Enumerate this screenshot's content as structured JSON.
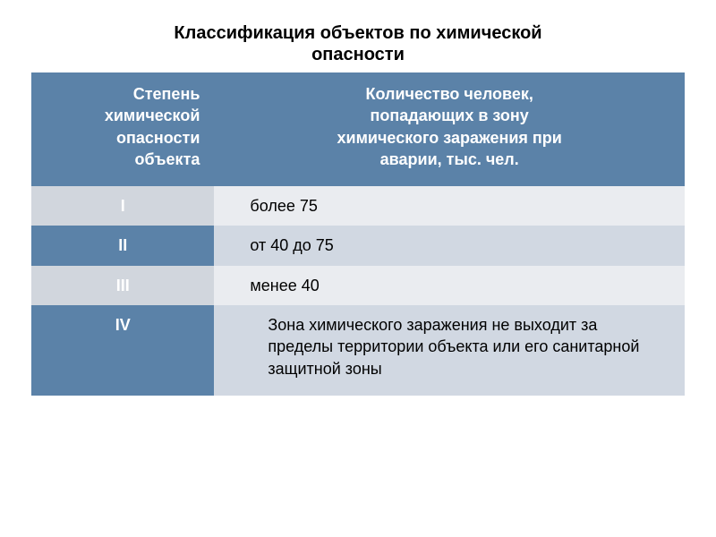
{
  "title_line1": "Классификация объектов по химической",
  "title_line2": "опасности",
  "header": {
    "col1_l1": "Степень",
    "col1_l2": "химической",
    "col1_l3": "опасности",
    "col1_l4": "объекта",
    "col2_l1": "Количество человек,",
    "col2_l2": "попадающих в зону",
    "col2_l3": "химического заражения при",
    "col2_l4": "аварии, тыс. чел."
  },
  "rows": [
    {
      "degree": "I",
      "value": "более 75"
    },
    {
      "degree": "II",
      "value": "от 40 до 75"
    },
    {
      "degree": "III",
      "value": "менее 40"
    },
    {
      "degree": "IV",
      "value": "Зона химического заражения не выходит за пределы территории объекта или его санитарной защитной зоны"
    }
  ],
  "colors": {
    "header_bg": "#5b82a8",
    "header_text": "#ffffff",
    "odd_cat_bg": "#d1d6dd",
    "odd_val_bg": "#eaecf0",
    "even_cat_bg": "#5b82a8",
    "even_val_bg": "#d1d8e2",
    "body_text": "#000000"
  }
}
